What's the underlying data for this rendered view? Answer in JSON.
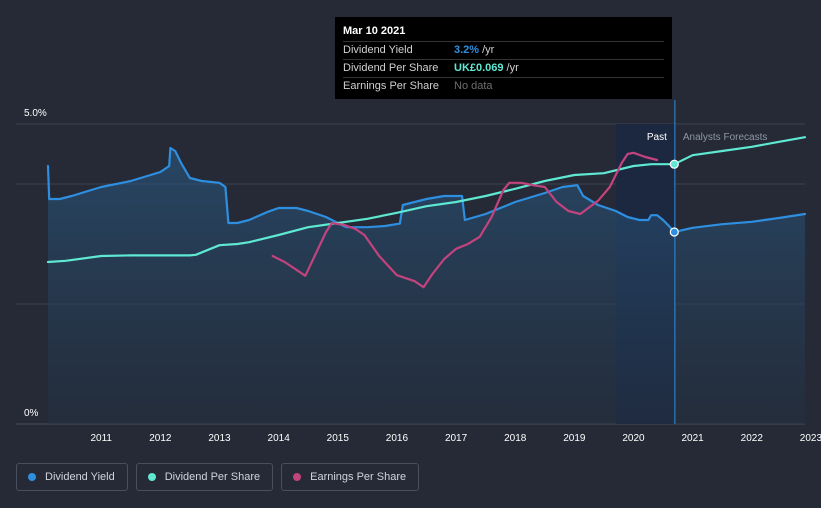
{
  "chart_data": {
    "type": "line",
    "ylim_percent": [
      0,
      5.0
    ],
    "y_tick_labels": [
      "5.0%",
      "0%"
    ],
    "x_tick_labels": [
      "2011",
      "2012",
      "2013",
      "2014",
      "2015",
      "2016",
      "2017",
      "2018",
      "2019",
      "2020",
      "2021",
      "2022",
      "2023"
    ],
    "x_range": [
      2010.6,
      2023.4
    ],
    "past_label": "Past",
    "forecast_label": "Analysts Forecasts",
    "past_start": 2020.2,
    "divider": 2021.2,
    "series": [
      {
        "name": "Dividend Yield",
        "color": "#2e8fe0",
        "unit": "percent",
        "filled": true,
        "points": [
          [
            2010.6,
            4.3
          ],
          [
            2010.62,
            3.75
          ],
          [
            2010.8,
            3.75
          ],
          [
            2011.0,
            3.8
          ],
          [
            2011.5,
            3.95
          ],
          [
            2012.0,
            4.05
          ],
          [
            2012.5,
            4.2
          ],
          [
            2012.65,
            4.3
          ],
          [
            2012.67,
            4.6
          ],
          [
            2012.75,
            4.55
          ],
          [
            2012.85,
            4.35
          ],
          [
            2013.0,
            4.1
          ],
          [
            2013.2,
            4.05
          ],
          [
            2013.5,
            4.02
          ],
          [
            2013.6,
            3.95
          ],
          [
            2013.65,
            3.35
          ],
          [
            2013.8,
            3.35
          ],
          [
            2014.0,
            3.4
          ],
          [
            2014.3,
            3.53
          ],
          [
            2014.5,
            3.6
          ],
          [
            2014.8,
            3.6
          ],
          [
            2015.0,
            3.55
          ],
          [
            2015.3,
            3.45
          ],
          [
            2015.6,
            3.3
          ],
          [
            2015.65,
            3.28
          ],
          [
            2016.0,
            3.28
          ],
          [
            2016.3,
            3.3
          ],
          [
            2016.55,
            3.34
          ],
          [
            2016.6,
            3.65
          ],
          [
            2017.0,
            3.75
          ],
          [
            2017.3,
            3.8
          ],
          [
            2017.6,
            3.8
          ],
          [
            2017.65,
            3.4
          ],
          [
            2018.0,
            3.5
          ],
          [
            2018.5,
            3.7
          ],
          [
            2019.0,
            3.85
          ],
          [
            2019.3,
            3.95
          ],
          [
            2019.55,
            3.98
          ],
          [
            2019.65,
            3.8
          ],
          [
            2019.9,
            3.65
          ],
          [
            2020.2,
            3.55
          ],
          [
            2020.4,
            3.45
          ],
          [
            2020.6,
            3.4
          ],
          [
            2020.75,
            3.4
          ],
          [
            2020.8,
            3.48
          ],
          [
            2020.9,
            3.48
          ],
          [
            2021.0,
            3.4
          ],
          [
            2021.1,
            3.3
          ],
          [
            2021.19,
            3.2
          ],
          [
            2021.5,
            3.27
          ],
          [
            2022.0,
            3.33
          ],
          [
            2022.5,
            3.37
          ],
          [
            2023.0,
            3.44
          ],
          [
            2023.4,
            3.5
          ]
        ]
      },
      {
        "name": "Dividend Per Share",
        "color": "#5fe8d2",
        "unit": "percent",
        "filled": false,
        "points": [
          [
            2010.6,
            2.7
          ],
          [
            2010.9,
            2.72
          ],
          [
            2011.5,
            2.8
          ],
          [
            2012.0,
            2.81
          ],
          [
            2012.5,
            2.81
          ],
          [
            2013.0,
            2.81
          ],
          [
            2013.1,
            2.82
          ],
          [
            2013.5,
            2.98
          ],
          [
            2013.8,
            3.0
          ],
          [
            2014.0,
            3.03
          ],
          [
            2014.5,
            3.15
          ],
          [
            2015.0,
            3.28
          ],
          [
            2015.5,
            3.35
          ],
          [
            2016.0,
            3.42
          ],
          [
            2016.5,
            3.52
          ],
          [
            2017.0,
            3.63
          ],
          [
            2017.5,
            3.7
          ],
          [
            2018.0,
            3.8
          ],
          [
            2018.5,
            3.92
          ],
          [
            2019.0,
            4.05
          ],
          [
            2019.5,
            4.15
          ],
          [
            2020.0,
            4.18
          ],
          [
            2020.5,
            4.3
          ],
          [
            2020.8,
            4.33
          ],
          [
            2021.19,
            4.33
          ],
          [
            2021.5,
            4.48
          ],
          [
            2022.0,
            4.55
          ],
          [
            2022.5,
            4.62
          ],
          [
            2023.0,
            4.71
          ],
          [
            2023.4,
            4.78
          ]
        ]
      },
      {
        "name": "Earnings Per Share",
        "color": "#c2437e",
        "unit": "percent",
        "filled": false,
        "points": [
          [
            2014.4,
            2.8
          ],
          [
            2014.6,
            2.7
          ],
          [
            2014.8,
            2.57
          ],
          [
            2014.95,
            2.47
          ],
          [
            2015.1,
            2.78
          ],
          [
            2015.3,
            3.2
          ],
          [
            2015.4,
            3.35
          ],
          [
            2015.6,
            3.32
          ],
          [
            2015.8,
            3.25
          ],
          [
            2015.95,
            3.15
          ],
          [
            2016.2,
            2.8
          ],
          [
            2016.5,
            2.48
          ],
          [
            2016.8,
            2.38
          ],
          [
            2016.95,
            2.28
          ],
          [
            2017.1,
            2.5
          ],
          [
            2017.3,
            2.75
          ],
          [
            2017.5,
            2.92
          ],
          [
            2017.7,
            3.0
          ],
          [
            2017.9,
            3.12
          ],
          [
            2018.1,
            3.45
          ],
          [
            2018.3,
            3.9
          ],
          [
            2018.4,
            4.02
          ],
          [
            2018.6,
            4.02
          ],
          [
            2018.8,
            3.98
          ],
          [
            2019.0,
            3.95
          ],
          [
            2019.2,
            3.7
          ],
          [
            2019.4,
            3.55
          ],
          [
            2019.6,
            3.5
          ],
          [
            2019.9,
            3.72
          ],
          [
            2020.1,
            3.95
          ],
          [
            2020.3,
            4.35
          ],
          [
            2020.4,
            4.5
          ],
          [
            2020.5,
            4.52
          ],
          [
            2020.7,
            4.45
          ],
          [
            2020.9,
            4.4
          ]
        ]
      }
    ],
    "highlight_points": [
      {
        "series": "Dividend Per Share",
        "x": 2021.19,
        "y": 4.33
      },
      {
        "series": "Dividend Yield",
        "x": 2021.19,
        "y": 3.2
      }
    ]
  },
  "tooltip": {
    "date": "Mar 10 2021",
    "rows": [
      {
        "label": "Dividend Yield",
        "value": "3.2%",
        "unit": "/yr",
        "color": "#2e8fe0"
      },
      {
        "label": "Dividend Per Share",
        "value": "UK£0.069",
        "unit": "/yr",
        "color": "#5fe8d2"
      },
      {
        "label": "Earnings Per Share",
        "value": "No data",
        "unit": "",
        "color": "#6e6e6e"
      }
    ]
  },
  "legend": [
    {
      "label": "Dividend Yield",
      "color": "#2e8fe0"
    },
    {
      "label": "Dividend Per Share",
      "color": "#5fe8d2"
    },
    {
      "label": "Earnings Per Share",
      "color": "#c2437e"
    }
  ]
}
